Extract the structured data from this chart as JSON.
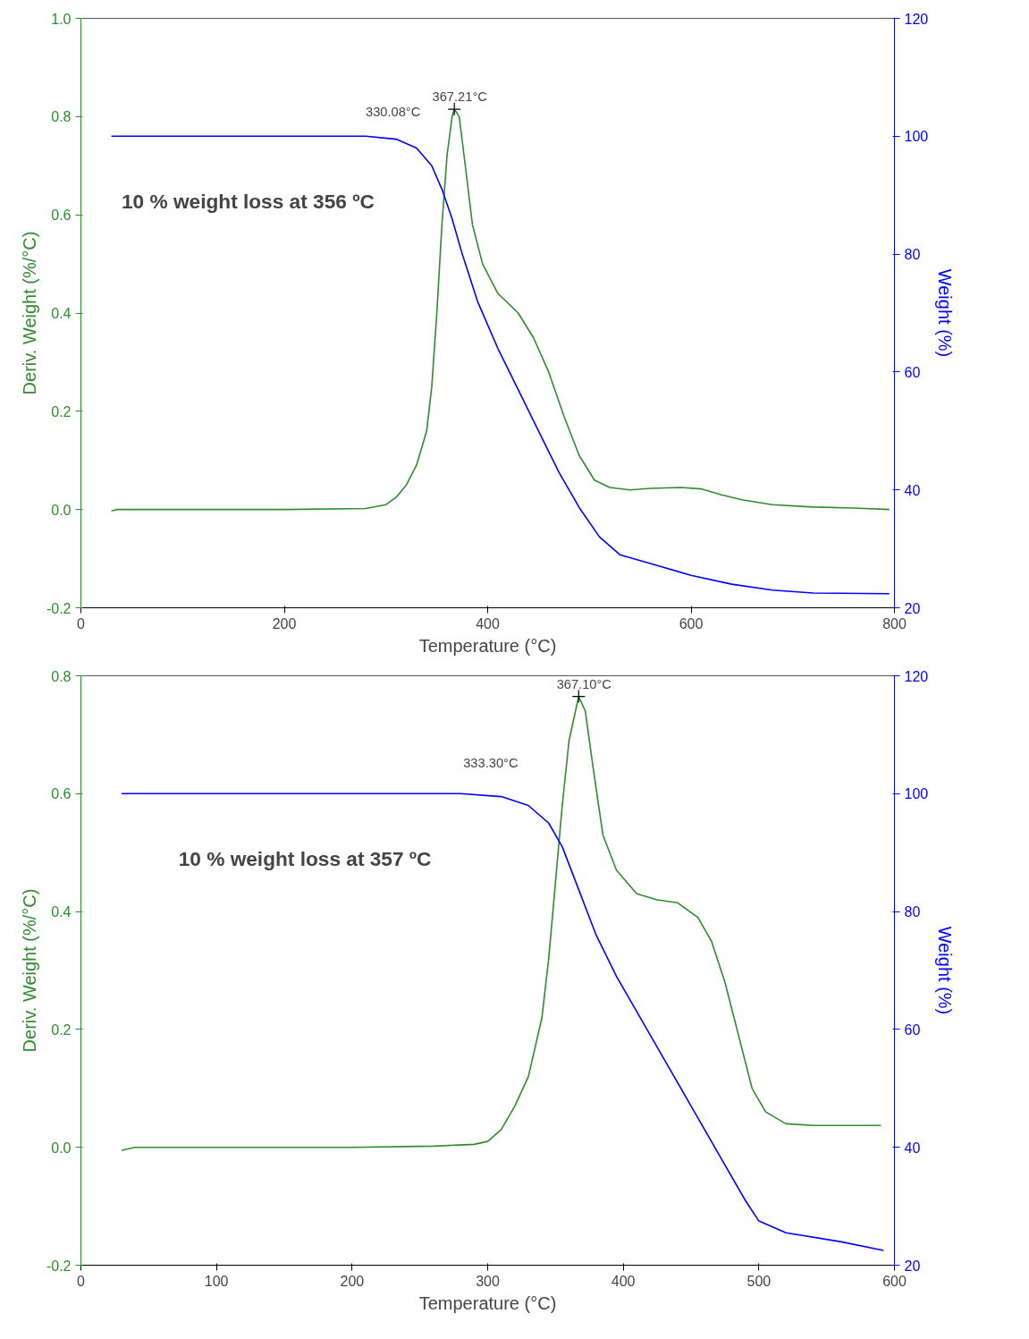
{
  "chart_data": [
    {
      "type": "line",
      "xlabel": "Temperature (°C)",
      "ylabel": "Deriv. Weight (%/°C)",
      "y2label": "Weight (%)",
      "xlim": [
        0,
        800
      ],
      "xticks": [
        0,
        200,
        400,
        600,
        800
      ],
      "ylim": [
        -0.2,
        1.0
      ],
      "yticks": [
        {
          "value": -0.2,
          "label": "-0.2"
        },
        {
          "value": 0,
          "label": "0.0"
        },
        {
          "value": 0.2,
          "label": "0.2"
        },
        {
          "value": 0.4,
          "label": "0.4"
        },
        {
          "value": 0.6,
          "label": "0.6"
        },
        {
          "value": 0.8,
          "label": "0.8"
        },
        {
          "value": 1.0,
          "label": "1.0"
        }
      ],
      "y2lim": [
        20,
        120
      ],
      "y2ticks": [
        20,
        40,
        60,
        80,
        100,
        120
      ],
      "grid": false,
      "series": [
        {
          "color": "#2e8b2e",
          "x": [
            30,
            35,
            100,
            200,
            280,
            300,
            310,
            320,
            330,
            340,
            345,
            350,
            355,
            360,
            365,
            367.21,
            372,
            378,
            385,
            395,
            410,
            430,
            445,
            460,
            475,
            490,
            505,
            520,
            540,
            560,
            590,
            610,
            630,
            650,
            680,
            720,
            760,
            795
          ],
          "values": [
            -0.003,
            0,
            0,
            0,
            0.002,
            0.01,
            0.025,
            0.05,
            0.09,
            0.16,
            0.25,
            0.4,
            0.58,
            0.72,
            0.8,
            0.815,
            0.8,
            0.7,
            0.58,
            0.5,
            0.44,
            0.4,
            0.35,
            0.28,
            0.19,
            0.11,
            0.06,
            0.045,
            0.04,
            0.043,
            0.045,
            0.042,
            0.03,
            0.02,
            0.01,
            0.005,
            0.003,
            0.0
          ]
        },
        {
          "color": "#0000ff",
          "axis": "y2",
          "x": [
            30,
            280,
            310,
            330,
            345,
            355,
            365,
            375,
            390,
            410,
            430,
            450,
            470,
            490,
            510,
            530,
            560,
            600,
            640,
            680,
            720,
            795
          ],
          "values": [
            100,
            100,
            99.5,
            98,
            95,
            91,
            86,
            80,
            72,
            64,
            57,
            50,
            43,
            37,
            32,
            29,
            27.5,
            25.5,
            24,
            23,
            22.5,
            22.4
          ]
        }
      ],
      "annotations": [
        {
          "text": "367.21°C",
          "x": 367.21,
          "y": 0.815
        },
        "330.08°C",
        "10 % weight loss at  356 ºC"
      ]
    },
    {
      "type": "line",
      "xlabel": "Temperature (°C)",
      "ylabel": "Deriv. Weight (%/°C)",
      "y2label": "Weight (%)",
      "xlim": [
        0,
        600
      ],
      "xticks": [
        0,
        100,
        200,
        300,
        400,
        500,
        600
      ],
      "ylim": [
        -0.2,
        0.8
      ],
      "yticks": [
        {
          "value": -0.2,
          "label": "-0.2"
        },
        {
          "value": 0,
          "label": "0.0"
        },
        {
          "value": 0.2,
          "label": "0.2"
        },
        {
          "value": 0.4,
          "label": "0.4"
        },
        {
          "value": 0.6,
          "label": "0.6"
        },
        {
          "value": 0.8,
          "label": "0.8"
        }
      ],
      "y2lim": [
        20,
        120
      ],
      "y2ticks": [
        20,
        40,
        60,
        80,
        100,
        120
      ],
      "grid": false,
      "series": [
        {
          "color": "#2e8b2e",
          "x": [
            30,
            40,
            100,
            200,
            260,
            290,
            300,
            310,
            320,
            330,
            340,
            345,
            350,
            355,
            360,
            367.1,
            372,
            378,
            385,
            395,
            410,
            425,
            440,
            455,
            465,
            475,
            485,
            495,
            505,
            520,
            540,
            590
          ],
          "values": [
            -0.005,
            0,
            0,
            0,
            0.002,
            0.005,
            0.01,
            0.03,
            0.07,
            0.12,
            0.22,
            0.32,
            0.45,
            0.58,
            0.69,
            0.765,
            0.74,
            0.64,
            0.53,
            0.47,
            0.43,
            0.42,
            0.415,
            0.39,
            0.35,
            0.28,
            0.19,
            0.1,
            0.06,
            0.04,
            0.037,
            0.037
          ]
        },
        {
          "color": "#0000ff",
          "axis": "y2",
          "x": [
            30,
            280,
            310,
            330,
            345,
            355,
            365,
            380,
            395,
            410,
            430,
            450,
            470,
            490,
            500,
            520,
            560,
            592
          ],
          "values": [
            100,
            100,
            99.5,
            98,
            95,
            91,
            85,
            76,
            69,
            63,
            55,
            47,
            39,
            31,
            27.5,
            25.5,
            24,
            22.5
          ]
        }
      ],
      "annotations": [
        {
          "text": "367.10°C",
          "x": 367.1,
          "y": 0.765
        },
        "333.30°C",
        "10 % weight loss at 357 ºC"
      ]
    }
  ]
}
